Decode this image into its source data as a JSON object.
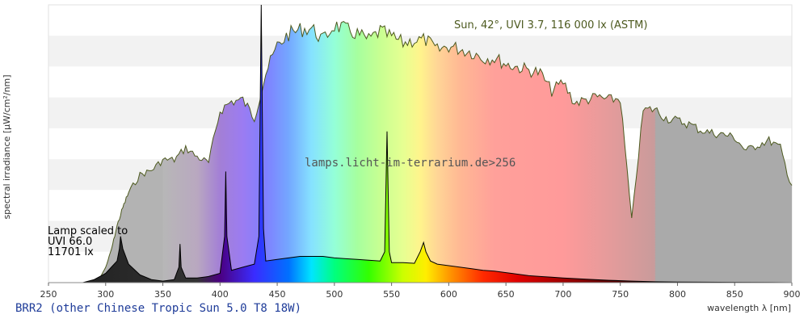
{
  "chart_data": {
    "type": "area",
    "xlabel": "wavelength λ [nm]",
    "ylabel": "spectral irradiance [µW/cm²/nm]",
    "xlim": [
      250,
      900
    ],
    "x_ticks": [
      250,
      300,
      350,
      400,
      450,
      500,
      550,
      600,
      650,
      700,
      750,
      800,
      850,
      900
    ],
    "grid": "alternating horizontal bands",
    "watermark": "lamps.licht-im-terrarium.de>256",
    "lamp_title": "BRR2 (other Chinese Tropic Sun 5.0 T8 18W)",
    "sun_label": "Sun, 42°, UVI 3.7, 116 000 lx (ASTM)",
    "lamp_label": [
      "Lamp scaled to",
      "UVI 66.0",
      "11701 lx"
    ],
    "sun_spectrum": {
      "x": [
        290,
        295,
        300,
        305,
        310,
        315,
        320,
        330,
        340,
        350,
        360,
        370,
        380,
        390,
        400,
        410,
        420,
        430,
        440,
        450,
        460,
        470,
        480,
        490,
        500,
        510,
        520,
        530,
        540,
        550,
        560,
        570,
        580,
        590,
        600,
        610,
        620,
        630,
        640,
        650,
        660,
        670,
        680,
        690,
        700,
        710,
        720,
        730,
        740,
        750,
        760,
        770,
        780,
        790,
        800,
        810,
        820,
        830,
        840,
        850,
        860,
        870,
        880,
        890,
        900
      ],
      "y": [
        0.0,
        0.03,
        0.1,
        0.22,
        0.38,
        0.5,
        0.6,
        0.72,
        0.75,
        0.82,
        0.82,
        0.9,
        0.84,
        0.8,
        1.15,
        1.21,
        1.22,
        1.1,
        1.4,
        1.58,
        1.66,
        1.69,
        1.7,
        1.62,
        1.72,
        1.69,
        1.66,
        1.62,
        1.68,
        1.64,
        1.6,
        1.62,
        1.62,
        1.55,
        1.58,
        1.56,
        1.54,
        1.5,
        1.5,
        1.46,
        1.44,
        1.42,
        1.4,
        1.28,
        1.34,
        1.2,
        1.22,
        1.24,
        1.22,
        1.23,
        0.42,
        1.15,
        1.16,
        1.1,
        1.08,
        1.06,
        1.02,
        1.0,
        0.99,
        0.97,
        0.88,
        0.92,
        0.95,
        0.9,
        0.63
      ]
    },
    "lamp_spectrum": {
      "x": [
        280,
        290,
        300,
        305,
        310,
        312,
        313,
        315,
        320,
        330,
        340,
        350,
        360,
        364,
        365,
        366,
        370,
        380,
        390,
        400,
        404,
        405,
        406,
        410,
        420,
        430,
        434,
        436,
        438,
        440,
        450,
        460,
        470,
        480,
        490,
        500,
        510,
        520,
        530,
        540,
        544,
        546,
        548,
        550,
        560,
        570,
        575,
        578,
        580,
        584,
        590,
        600,
        610,
        620,
        630,
        640,
        650,
        660,
        670,
        680,
        690,
        700,
        720,
        740,
        760,
        780,
        800,
        820,
        850,
        880,
        900
      ],
      "y": [
        0.0,
        0.02,
        0.06,
        0.1,
        0.14,
        0.22,
        0.3,
        0.22,
        0.12,
        0.05,
        0.02,
        0.01,
        0.02,
        0.1,
        0.25,
        0.1,
        0.03,
        0.03,
        0.04,
        0.06,
        0.3,
        0.72,
        0.3,
        0.08,
        0.1,
        0.12,
        0.3,
        1.8,
        0.35,
        0.14,
        0.15,
        0.16,
        0.17,
        0.17,
        0.17,
        0.16,
        0.155,
        0.15,
        0.145,
        0.14,
        0.2,
        0.98,
        0.2,
        0.13,
        0.13,
        0.125,
        0.2,
        0.26,
        0.2,
        0.14,
        0.12,
        0.11,
        0.1,
        0.09,
        0.08,
        0.075,
        0.065,
        0.055,
        0.045,
        0.04,
        0.035,
        0.03,
        0.022,
        0.015,
        0.01,
        0.006,
        0.004,
        0.003,
        0.002,
        0.001,
        0.0
      ]
    }
  }
}
